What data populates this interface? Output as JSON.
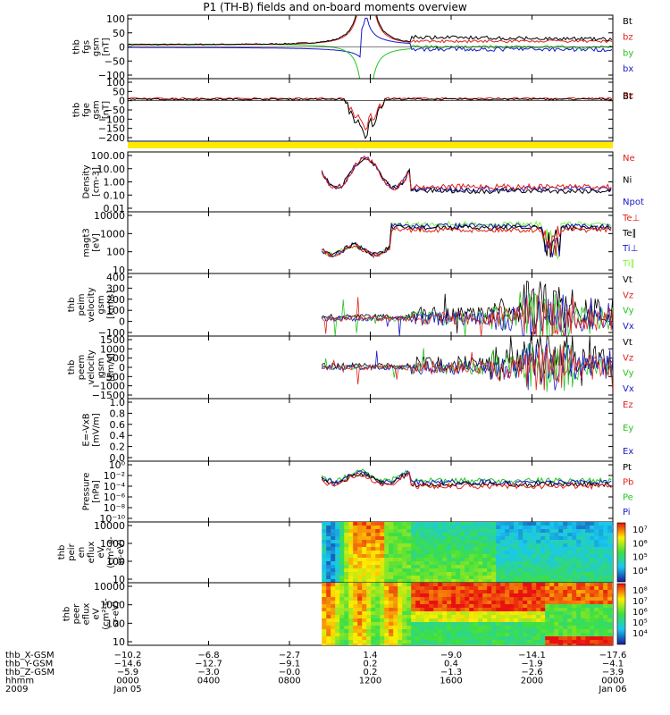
{
  "title": "P1 (TH-B) fields and on-board moments overview",
  "colors": {
    "black": "#000000",
    "red": "#e0221b",
    "green": "#22c61e",
    "blue": "#1818cc",
    "yellow": "#ffea00",
    "lightgreen": "#7cf23a"
  },
  "chart_data": [
    {
      "type": "line",
      "id": "fgs",
      "ylabel_lines": [
        "thb",
        "fgs",
        "gsm",
        "[nT]"
      ],
      "ylim": [
        -100,
        100
      ],
      "yticks": [
        "100",
        "50",
        "0",
        "−50",
        "−100"
      ],
      "legend": [
        {
          "label": "Bt",
          "color": "black"
        },
        {
          "label": "bz",
          "color": "red"
        },
        {
          "label": "by",
          "color": "green"
        },
        {
          "label": "bx",
          "color": "blue"
        }
      ]
    },
    {
      "type": "line",
      "id": "fge",
      "ylabel_lines": [
        "thb",
        "fge",
        "gsm",
        "[nT]"
      ],
      "ylim": [
        -200,
        100
      ],
      "yticks": [
        "100",
        "50",
        "0",
        "−50",
        "−100",
        "−150",
        "−200"
      ],
      "legend": [
        {
          "label": "Bz",
          "color": "red"
        },
        {
          "label": "Bt",
          "color": "black"
        }
      ]
    },
    {
      "type": "bar",
      "id": "mode",
      "note": "mode bar",
      "color": "yellow"
    },
    {
      "type": "line",
      "id": "density",
      "yscale": "log",
      "ylabel_lines": [
        "Density",
        "[cm-3]"
      ],
      "ylim": [
        0.01,
        100
      ],
      "yticks": [
        "100.00",
        "10.00",
        "1.00",
        "0.10",
        "0.01"
      ],
      "legend": [
        {
          "label": "Ne",
          "color": "red"
        },
        {
          "label": "Ni",
          "color": "black"
        },
        {
          "label": "Npot",
          "color": "blue"
        }
      ]
    },
    {
      "type": "line",
      "id": "temp",
      "yscale": "log",
      "ylabel_lines": [
        "magt3",
        "[eV]"
      ],
      "ylim": [
        10,
        10000
      ],
      "yticks": [
        "10000",
        "1000",
        "100",
        "10"
      ],
      "legend": [
        {
          "label": "Te⊥",
          "color": "red"
        },
        {
          "label": "Te∥",
          "color": "black"
        },
        {
          "label": "Ti⊥",
          "color": "blue"
        },
        {
          "label": "Ti∥",
          "color": "lightgreen"
        }
      ]
    },
    {
      "type": "line",
      "id": "peim",
      "ylabel_lines": [
        "thb",
        "peim",
        "velocity",
        "gsm",
        "[km/s]"
      ],
      "ylim": [
        -100,
        400
      ],
      "yticks": [
        "400",
        "300",
        "200",
        "100",
        "0",
        "−100"
      ],
      "legend": [
        {
          "label": "Vt",
          "color": "black"
        },
        {
          "label": "Vz",
          "color": "red"
        },
        {
          "label": "Vy",
          "color": "green"
        },
        {
          "label": "Vx",
          "color": "blue"
        }
      ]
    },
    {
      "type": "line",
      "id": "peem",
      "ylabel_lines": [
        "thb",
        "peem",
        "velocity",
        "gsm",
        "[km/s]"
      ],
      "ylim": [
        -1500,
        1500
      ],
      "yticks": [
        "1500",
        "1000",
        "500",
        "0",
        "−500",
        "−1000",
        "−1500"
      ],
      "legend": [
        {
          "label": "Vt",
          "color": "black"
        },
        {
          "label": "Vz",
          "color": "red"
        },
        {
          "label": "Vy",
          "color": "green"
        },
        {
          "label": "Vx",
          "color": "blue"
        }
      ]
    },
    {
      "type": "line",
      "id": "efield",
      "ylabel_lines": [
        "E=-VxB",
        "[mV/m]"
      ],
      "ylim": [
        0.0,
        1.0
      ],
      "yticks": [
        "1.0",
        "0.8",
        "0.6",
        "0.4",
        "0.2",
        "0.0"
      ],
      "legend": [
        {
          "label": "Ez",
          "color": "red"
        },
        {
          "label": "Ey",
          "color": "green"
        },
        {
          "label": "Ex",
          "color": "blue"
        }
      ]
    },
    {
      "type": "line",
      "id": "pressure",
      "yscale": "log",
      "ylabel_lines": [
        "Pressure",
        "[nPa]"
      ],
      "ylim": [
        1e-10,
        1
      ],
      "yticks": [
        "10⁰",
        "10⁻²",
        "10⁻⁴",
        "10⁻⁶",
        "10⁻⁸",
        "10⁻¹⁰"
      ],
      "legend": [
        {
          "label": "Pt",
          "color": "black"
        },
        {
          "label": "Pb",
          "color": "red"
        },
        {
          "label": "Pe",
          "color": "green"
        },
        {
          "label": "Pi",
          "color": "blue"
        }
      ]
    },
    {
      "type": "heatmap",
      "id": "peir",
      "yscale": "log",
      "ylabel_lines": [
        "thb",
        "peir",
        "en",
        "eflux",
        "eV",
        "(cm²-s-",
        "sr-eV)"
      ],
      "ylim": [
        10,
        10000
      ],
      "yticks": [
        "10000",
        "1000",
        "100",
        "10"
      ],
      "colorbar_ticks": [
        "10⁷",
        "10⁶",
        "10⁵",
        "10⁴"
      ]
    },
    {
      "type": "heatmap",
      "id": "peer",
      "yscale": "log",
      "ylabel_lines": [
        "thb",
        "peer",
        "eflux",
        "eV",
        "(cm²-s-",
        "sr-eV)"
      ],
      "ylim": [
        10,
        10000
      ],
      "yticks": [
        "10000",
        "1000",
        "100",
        "10"
      ],
      "colorbar_ticks": [
        "10⁸",
        "10⁷",
        "10⁶",
        "10⁵",
        "10⁴"
      ]
    }
  ],
  "xaxis": {
    "rows": [
      {
        "label": "thb_X-GSM",
        "values": [
          "−10.2",
          "−6.8",
          "−2.7",
          "1.4",
          "−9.0",
          "−14.1",
          "−17.6"
        ]
      },
      {
        "label": "thb_Y-GSM",
        "values": [
          "−14.6",
          "−12.7",
          "−9.1",
          "0.2",
          "0.4",
          "−1.9",
          "−4.1"
        ]
      },
      {
        "label": "thb_Z-GSM",
        "values": [
          "−5.9",
          "−3.0",
          "−0.0",
          "0.2",
          "−1.3",
          "−2.6",
          "−3.9"
        ]
      },
      {
        "label": "hhmm",
        "values": [
          "0000",
          "0400",
          "0800",
          "1200",
          "1600",
          "2000",
          "0000"
        ]
      },
      {
        "label": "2009",
        "values": [
          "Jan 05",
          "",
          "",
          "",
          "",
          "",
          "Jan 06"
        ]
      }
    ],
    "hours": [
      0,
      4,
      8,
      12,
      16,
      20,
      24
    ]
  }
}
